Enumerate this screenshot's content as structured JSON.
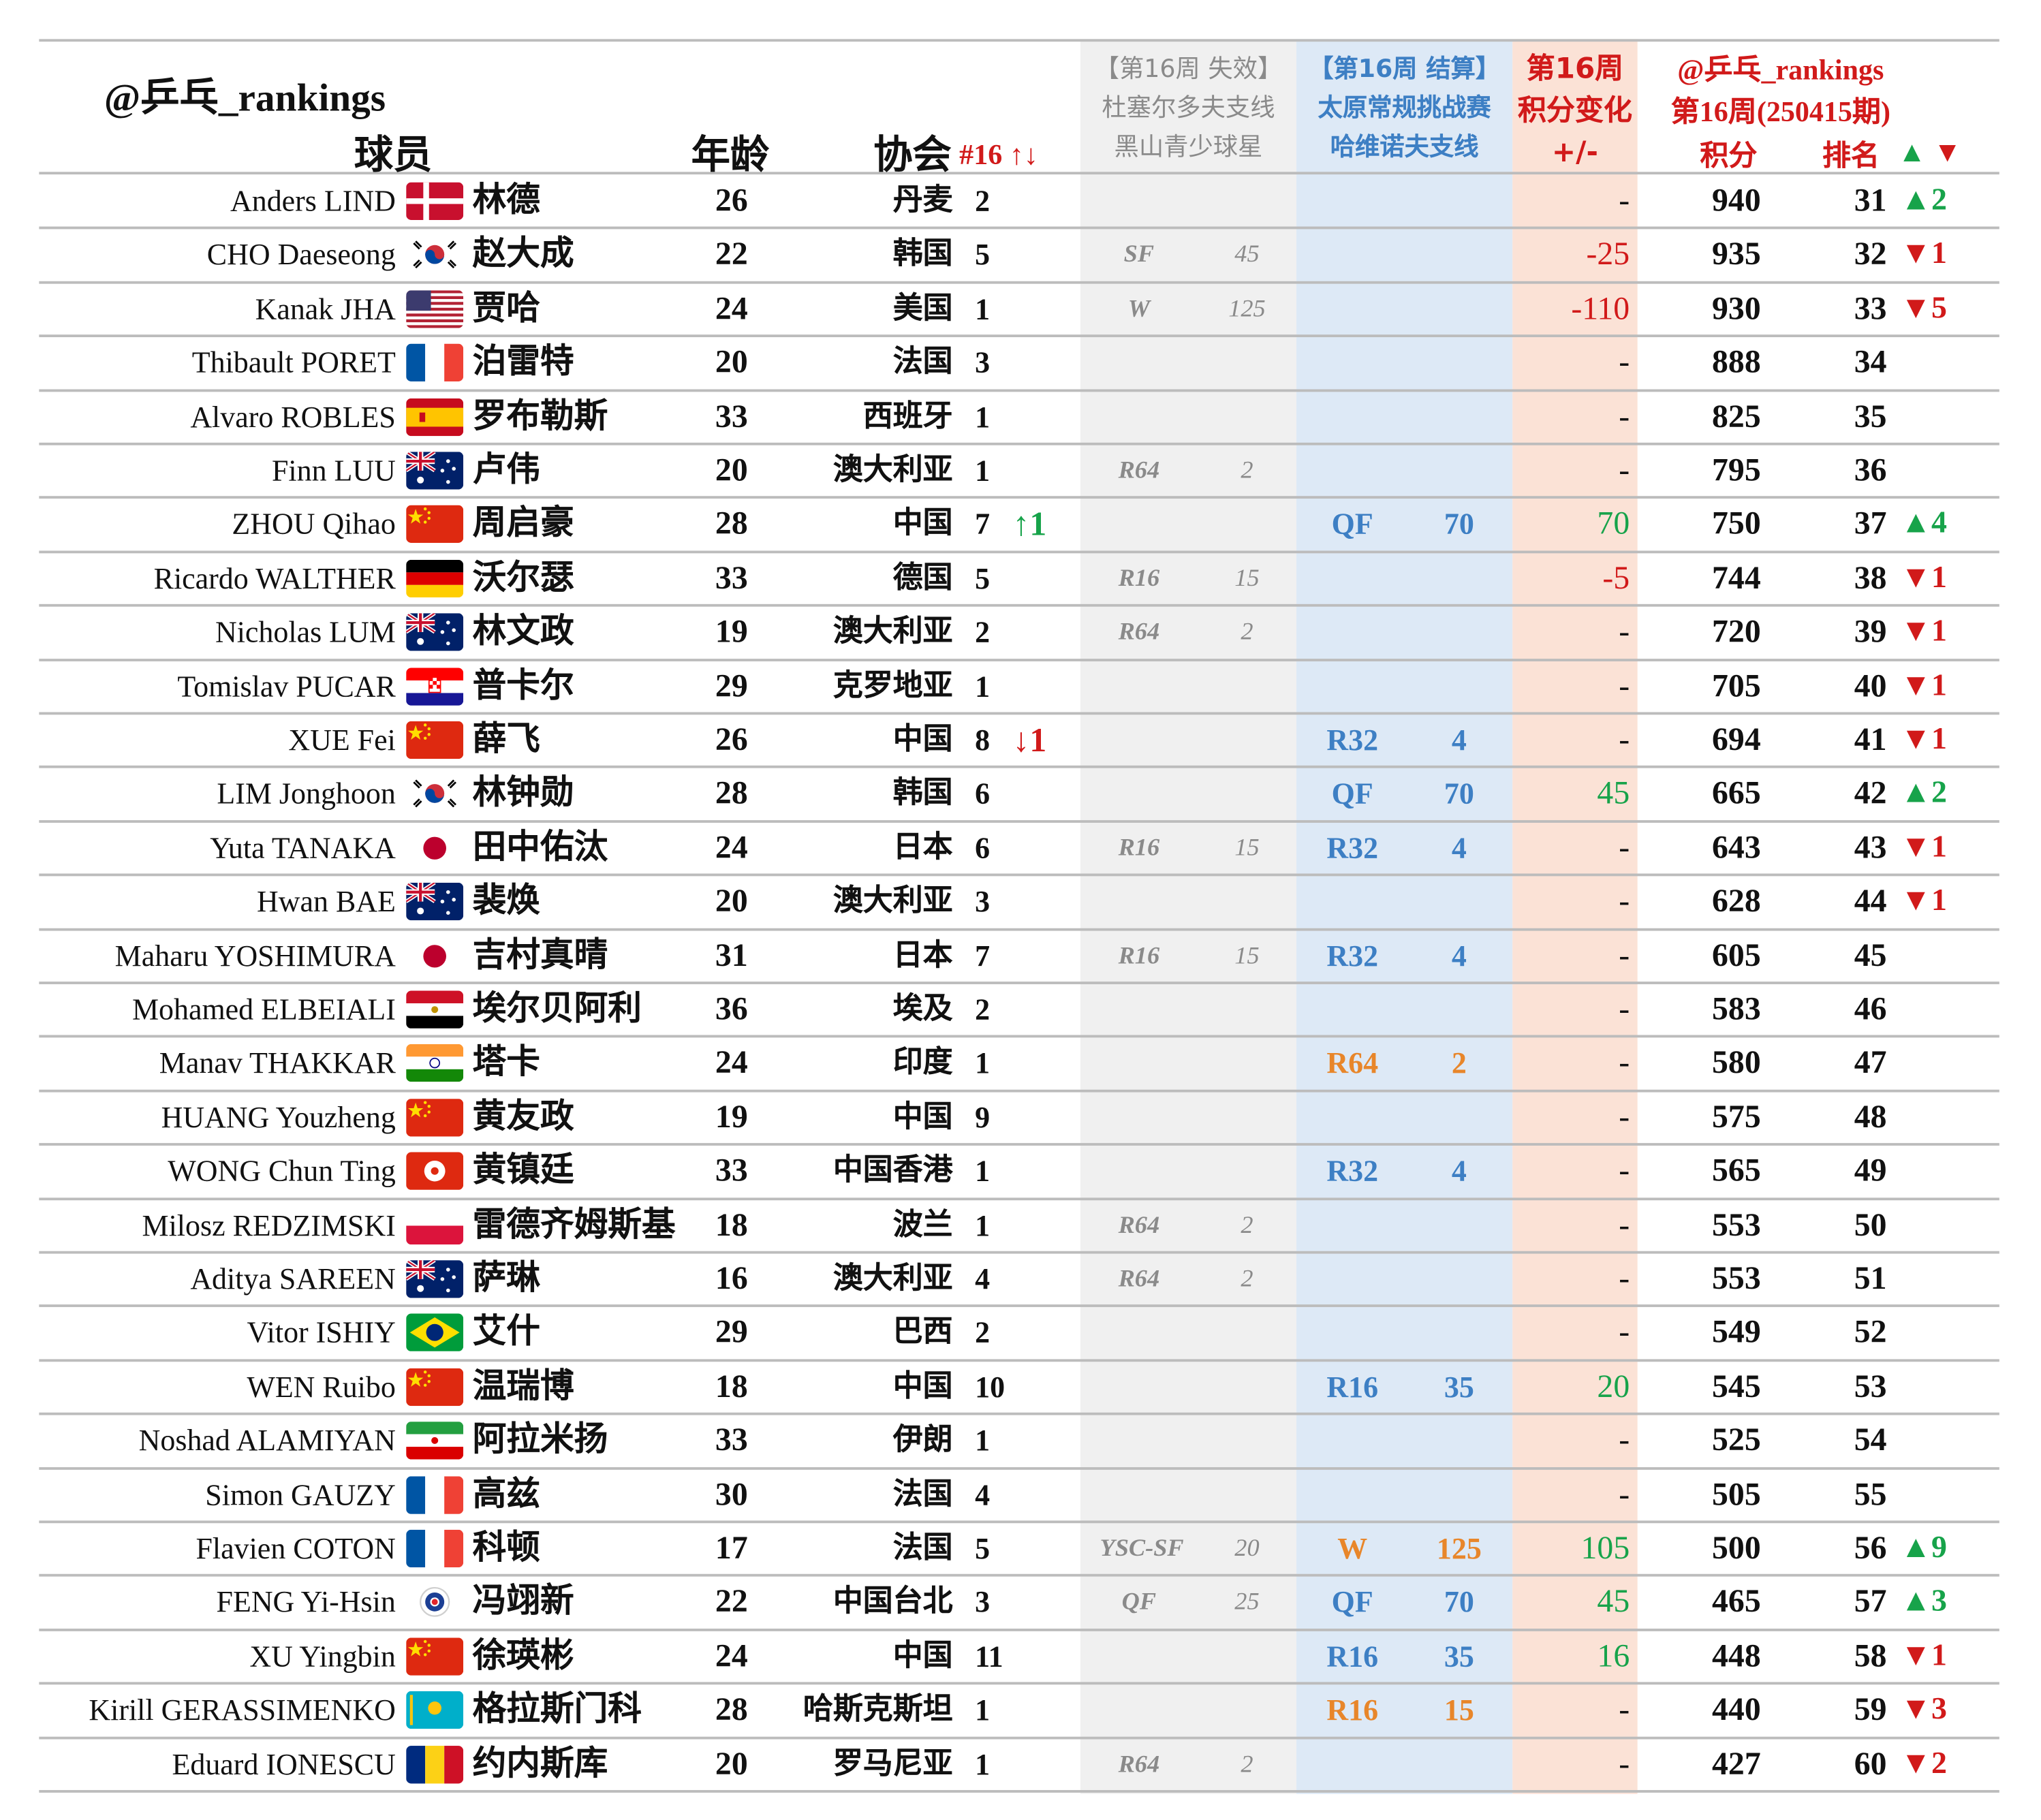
{
  "header": {
    "handle": "@乒乓_rankings",
    "col_player": "球员",
    "col_age": "年龄",
    "col_assoc": "协会",
    "col_nat_rank": "#16 ↑↓",
    "lost": {
      "title": "【第16周 失效】",
      "line2": "杜塞尔多夫支线",
      "line3": "黑山青少球星"
    },
    "settle": {
      "title": "【第16周 结算】",
      "line2": "太原常规挑战赛",
      "line3": "哈维诺夫支线"
    },
    "change": {
      "line1": "第16周",
      "line2": "积分变化",
      "line3": "+/-"
    },
    "ranking": {
      "handle": "@乒乓_rankings",
      "period": "第16周(250415期)",
      "points": "积分",
      "rank": "排名",
      "up": "▲",
      "down": "▼"
    }
  },
  "colors": {
    "up": "#17a34a",
    "down": "#d11a1a",
    "settle_blue": "#3d7fc4",
    "settle_orange": "#e8862a",
    "lost_gray": "#8a8a8a",
    "lost_band": "#f0f0f0",
    "settle_band": "#dde9f6",
    "change_band": "#fbe2d6"
  },
  "rows": [
    {
      "en": "Anders LIND",
      "flag": "denmark-flag",
      "cn": "林德",
      "age": "26",
      "assoc": "丹麦",
      "nat": "2",
      "mv": "",
      "mvdir": "",
      "lost_round": "",
      "lost_pts": "",
      "set_round": "",
      "set_pts": "",
      "set_color": "",
      "chg": "-",
      "pts": "940",
      "rank": "31",
      "rmv": "▲2",
      "rdir": "up"
    },
    {
      "en": "CHO Daeseong",
      "flag": "korea-flag",
      "cn": "赵大成",
      "age": "22",
      "assoc": "韩国",
      "nat": "5",
      "mv": "",
      "mvdir": "",
      "lost_round": "SF",
      "lost_pts": "45",
      "set_round": "",
      "set_pts": "",
      "set_color": "",
      "chg": "-25",
      "pts": "935",
      "rank": "32",
      "rmv": "▼1",
      "rdir": "dn"
    },
    {
      "en": "Kanak JHA",
      "flag": "usa-flag",
      "cn": "贾哈",
      "age": "24",
      "assoc": "美国",
      "nat": "1",
      "mv": "",
      "mvdir": "",
      "lost_round": "W",
      "lost_pts": "125",
      "set_round": "",
      "set_pts": "",
      "set_color": "",
      "chg": "-110",
      "pts": "930",
      "rank": "33",
      "rmv": "▼5",
      "rdir": "dn"
    },
    {
      "en": "Thibault PORET",
      "flag": "france-flag",
      "cn": "泊雷特",
      "age": "20",
      "assoc": "法国",
      "nat": "3",
      "mv": "",
      "mvdir": "",
      "lost_round": "",
      "lost_pts": "",
      "set_round": "",
      "set_pts": "",
      "set_color": "",
      "chg": "-",
      "pts": "888",
      "rank": "34",
      "rmv": "",
      "rdir": ""
    },
    {
      "en": "Alvaro ROBLES",
      "flag": "spain-flag",
      "cn": "罗布勒斯",
      "age": "33",
      "assoc": "西班牙",
      "nat": "1",
      "mv": "",
      "mvdir": "",
      "lost_round": "",
      "lost_pts": "",
      "set_round": "",
      "set_pts": "",
      "set_color": "",
      "chg": "-",
      "pts": "825",
      "rank": "35",
      "rmv": "",
      "rdir": ""
    },
    {
      "en": "Finn LUU",
      "flag": "australia-flag",
      "cn": "卢伟",
      "age": "20",
      "assoc": "澳大利亚",
      "nat": "1",
      "mv": "",
      "mvdir": "",
      "lost_round": "R64",
      "lost_pts": "2",
      "set_round": "",
      "set_pts": "",
      "set_color": "",
      "chg": "-",
      "pts": "795",
      "rank": "36",
      "rmv": "",
      "rdir": ""
    },
    {
      "en": "ZHOU Qihao",
      "flag": "china-flag",
      "cn": "周启豪",
      "age": "28",
      "assoc": "中国",
      "nat": "7",
      "mv": "↑1",
      "mvdir": "up",
      "lost_round": "",
      "lost_pts": "",
      "set_round": "QF",
      "set_pts": "70",
      "set_color": "blue",
      "chg": "70",
      "pts": "750",
      "rank": "37",
      "rmv": "▲4",
      "rdir": "up"
    },
    {
      "en": "Ricardo WALTHER",
      "flag": "germany-flag",
      "cn": "沃尔瑟",
      "age": "33",
      "assoc": "德国",
      "nat": "5",
      "mv": "",
      "mvdir": "",
      "lost_round": "R16",
      "lost_pts": "15",
      "set_round": "",
      "set_pts": "",
      "set_color": "",
      "chg": "-5",
      "pts": "744",
      "rank": "38",
      "rmv": "▼1",
      "rdir": "dn"
    },
    {
      "en": "Nicholas LUM",
      "flag": "australia-flag",
      "cn": "林文政",
      "age": "19",
      "assoc": "澳大利亚",
      "nat": "2",
      "mv": "",
      "mvdir": "",
      "lost_round": "R64",
      "lost_pts": "2",
      "set_round": "",
      "set_pts": "",
      "set_color": "",
      "chg": "-",
      "pts": "720",
      "rank": "39",
      "rmv": "▼1",
      "rdir": "dn"
    },
    {
      "en": "Tomislav PUCAR",
      "flag": "croatia-flag",
      "cn": "普卡尔",
      "age": "29",
      "assoc": "克罗地亚",
      "nat": "1",
      "mv": "",
      "mvdir": "",
      "lost_round": "",
      "lost_pts": "",
      "set_round": "",
      "set_pts": "",
      "set_color": "",
      "chg": "-",
      "pts": "705",
      "rank": "40",
      "rmv": "▼1",
      "rdir": "dn"
    },
    {
      "en": "XUE Fei",
      "flag": "china-flag",
      "cn": "薛飞",
      "age": "26",
      "assoc": "中国",
      "nat": "8",
      "mv": "↓1",
      "mvdir": "dn",
      "lost_round": "",
      "lost_pts": "",
      "set_round": "R32",
      "set_pts": "4",
      "set_color": "blue",
      "chg": "-",
      "pts": "694",
      "rank": "41",
      "rmv": "▼1",
      "rdir": "dn"
    },
    {
      "en": "LIM Jonghoon",
      "flag": "korea-flag",
      "cn": "林钟勋",
      "age": "28",
      "assoc": "韩国",
      "nat": "6",
      "mv": "",
      "mvdir": "",
      "lost_round": "",
      "lost_pts": "",
      "set_round": "QF",
      "set_pts": "70",
      "set_color": "blue",
      "chg": "45",
      "pts": "665",
      "rank": "42",
      "rmv": "▲2",
      "rdir": "up"
    },
    {
      "en": "Yuta TANAKA",
      "flag": "japan-flag",
      "cn": "田中佑汰",
      "age": "24",
      "assoc": "日本",
      "nat": "6",
      "mv": "",
      "mvdir": "",
      "lost_round": "R16",
      "lost_pts": "15",
      "set_round": "R32",
      "set_pts": "4",
      "set_color": "blue",
      "chg": "-",
      "pts": "643",
      "rank": "43",
      "rmv": "▼1",
      "rdir": "dn"
    },
    {
      "en": "Hwan BAE",
      "flag": "australia-flag",
      "cn": "裴焕",
      "age": "20",
      "assoc": "澳大利亚",
      "nat": "3",
      "mv": "",
      "mvdir": "",
      "lost_round": "",
      "lost_pts": "",
      "set_round": "",
      "set_pts": "",
      "set_color": "",
      "chg": "-",
      "pts": "628",
      "rank": "44",
      "rmv": "▼1",
      "rdir": "dn"
    },
    {
      "en": "Maharu YOSHIMURA",
      "flag": "japan-flag",
      "cn": "吉村真晴",
      "age": "31",
      "assoc": "日本",
      "nat": "7",
      "mv": "",
      "mvdir": "",
      "lost_round": "R16",
      "lost_pts": "15",
      "set_round": "R32",
      "set_pts": "4",
      "set_color": "blue",
      "chg": "-",
      "pts": "605",
      "rank": "45",
      "rmv": "",
      "rdir": ""
    },
    {
      "en": "Mohamed ELBEIALI",
      "flag": "egypt-flag",
      "cn": "埃尔贝阿利",
      "age": "36",
      "assoc": "埃及",
      "nat": "2",
      "mv": "",
      "mvdir": "",
      "lost_round": "",
      "lost_pts": "",
      "set_round": "",
      "set_pts": "",
      "set_color": "",
      "chg": "-",
      "pts": "583",
      "rank": "46",
      "rmv": "",
      "rdir": ""
    },
    {
      "en": "Manav THAKKAR",
      "flag": "india-flag",
      "cn": "塔卡",
      "age": "24",
      "assoc": "印度",
      "nat": "1",
      "mv": "",
      "mvdir": "",
      "lost_round": "",
      "lost_pts": "",
      "set_round": "R64",
      "set_pts": "2",
      "set_color": "orange",
      "chg": "-",
      "pts": "580",
      "rank": "47",
      "rmv": "",
      "rdir": ""
    },
    {
      "en": "HUANG Youzheng",
      "flag": "china-flag",
      "cn": "黄友政",
      "age": "19",
      "assoc": "中国",
      "nat": "9",
      "mv": "",
      "mvdir": "",
      "lost_round": "",
      "lost_pts": "",
      "set_round": "",
      "set_pts": "",
      "set_color": "",
      "chg": "-",
      "pts": "575",
      "rank": "48",
      "rmv": "",
      "rdir": ""
    },
    {
      "en": "WONG Chun Ting",
      "flag": "hongkong-flag",
      "cn": "黄镇廷",
      "age": "33",
      "assoc": "中国香港",
      "nat": "1",
      "mv": "",
      "mvdir": "",
      "lost_round": "",
      "lost_pts": "",
      "set_round": "R32",
      "set_pts": "4",
      "set_color": "blue",
      "chg": "-",
      "pts": "565",
      "rank": "49",
      "rmv": "",
      "rdir": ""
    },
    {
      "en": "Milosz REDZIMSKI",
      "flag": "poland-flag",
      "cn": "雷德齐姆斯基",
      "age": "18",
      "assoc": "波兰",
      "nat": "1",
      "mv": "",
      "mvdir": "",
      "lost_round": "R64",
      "lost_pts": "2",
      "set_round": "",
      "set_pts": "",
      "set_color": "",
      "chg": "-",
      "pts": "553",
      "rank": "50",
      "rmv": "",
      "rdir": ""
    },
    {
      "en": "Aditya SAREEN",
      "flag": "australia-flag",
      "cn": "萨琳",
      "age": "16",
      "assoc": "澳大利亚",
      "nat": "4",
      "mv": "",
      "mvdir": "",
      "lost_round": "R64",
      "lost_pts": "2",
      "set_round": "",
      "set_pts": "",
      "set_color": "",
      "chg": "-",
      "pts": "553",
      "rank": "51",
      "rmv": "",
      "rdir": ""
    },
    {
      "en": "Vitor ISHIY",
      "flag": "brazil-flag",
      "cn": "艾什",
      "age": "29",
      "assoc": "巴西",
      "nat": "2",
      "mv": "",
      "mvdir": "",
      "lost_round": "",
      "lost_pts": "",
      "set_round": "",
      "set_pts": "",
      "set_color": "",
      "chg": "-",
      "pts": "549",
      "rank": "52",
      "rmv": "",
      "rdir": ""
    },
    {
      "en": "WEN Ruibo",
      "flag": "china-flag",
      "cn": "温瑞博",
      "age": "18",
      "assoc": "中国",
      "nat": "10",
      "mv": "",
      "mvdir": "",
      "lost_round": "",
      "lost_pts": "",
      "set_round": "R16",
      "set_pts": "35",
      "set_color": "blue",
      "chg": "20",
      "pts": "545",
      "rank": "53",
      "rmv": "",
      "rdir": ""
    },
    {
      "en": "Noshad ALAMIYAN",
      "flag": "iran-flag",
      "cn": "阿拉米扬",
      "age": "33",
      "assoc": "伊朗",
      "nat": "1",
      "mv": "",
      "mvdir": "",
      "lost_round": "",
      "lost_pts": "",
      "set_round": "",
      "set_pts": "",
      "set_color": "",
      "chg": "-",
      "pts": "525",
      "rank": "54",
      "rmv": "",
      "rdir": ""
    },
    {
      "en": "Simon GAUZY",
      "flag": "france-flag",
      "cn": "高兹",
      "age": "30",
      "assoc": "法国",
      "nat": "4",
      "mv": "",
      "mvdir": "",
      "lost_round": "",
      "lost_pts": "",
      "set_round": "",
      "set_pts": "",
      "set_color": "",
      "chg": "-",
      "pts": "505",
      "rank": "55",
      "rmv": "",
      "rdir": ""
    },
    {
      "en": "Flavien COTON",
      "flag": "france-flag",
      "cn": "科顿",
      "age": "17",
      "assoc": "法国",
      "nat": "5",
      "mv": "",
      "mvdir": "",
      "lost_round": "YSC-SF",
      "lost_pts": "20",
      "set_round": "W",
      "set_pts": "125",
      "set_color": "orange",
      "chg": "105",
      "pts": "500",
      "rank": "56",
      "rmv": "▲9",
      "rdir": "up"
    },
    {
      "en": "FENG Yi-Hsin",
      "flag": "chinese-taipei-flag",
      "cn": "冯翊新",
      "age": "22",
      "assoc": "中国台北",
      "nat": "3",
      "mv": "",
      "mvdir": "",
      "lost_round": "QF",
      "lost_pts": "25",
      "set_round": "QF",
      "set_pts": "70",
      "set_color": "blue",
      "chg": "45",
      "pts": "465",
      "rank": "57",
      "rmv": "▲3",
      "rdir": "up"
    },
    {
      "en": "XU Yingbin",
      "flag": "china-flag",
      "cn": "徐瑛彬",
      "age": "24",
      "assoc": "中国",
      "nat": "11",
      "mv": "",
      "mvdir": "",
      "lost_round": "",
      "lost_pts": "",
      "set_round": "R16",
      "set_pts": "35",
      "set_color": "blue",
      "chg": "16",
      "pts": "448",
      "rank": "58",
      "rmv": "▼1",
      "rdir": "dn"
    },
    {
      "en": "Kirill GERASSIMENKO",
      "flag": "kazakhstan-flag",
      "cn": "格拉斯门科",
      "age": "28",
      "assoc": "哈斯克斯坦",
      "nat": "1",
      "mv": "",
      "mvdir": "",
      "lost_round": "",
      "lost_pts": "",
      "set_round": "R16",
      "set_pts": "15",
      "set_color": "orange",
      "chg": "-",
      "pts": "440",
      "rank": "59",
      "rmv": "▼3",
      "rdir": "dn"
    },
    {
      "en": "Eduard IONESCU",
      "flag": "romania-flag",
      "cn": "约内斯库",
      "age": "20",
      "assoc": "罗马尼亚",
      "nat": "1",
      "mv": "",
      "mvdir": "",
      "lost_round": "R64",
      "lost_pts": "2",
      "set_round": "",
      "set_pts": "",
      "set_color": "",
      "chg": "-",
      "pts": "427",
      "rank": "60",
      "rmv": "▼2",
      "rdir": "dn"
    }
  ]
}
